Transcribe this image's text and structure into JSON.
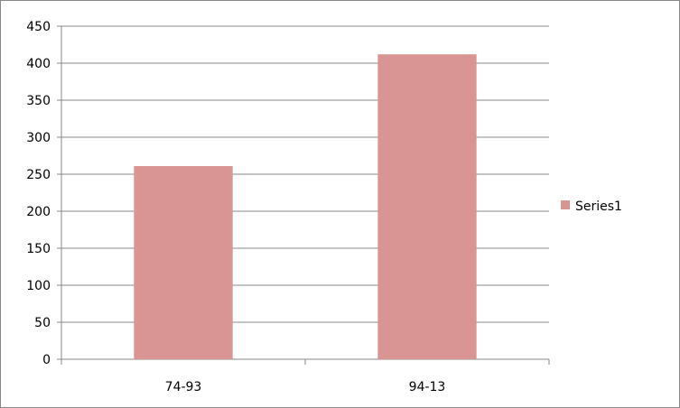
{
  "chart_data": {
    "type": "bar",
    "title": "",
    "xlabel": "",
    "ylabel": "",
    "categories": [
      "74-93",
      "94-13"
    ],
    "series": [
      {
        "name": "Series1",
        "values": [
          261,
          412
        ],
        "color": "#d99594"
      }
    ],
    "ylim": [
      0,
      450
    ],
    "yticks": [
      0,
      50,
      100,
      150,
      200,
      250,
      300,
      350,
      400,
      450
    ],
    "grid": true,
    "legend": "right"
  }
}
